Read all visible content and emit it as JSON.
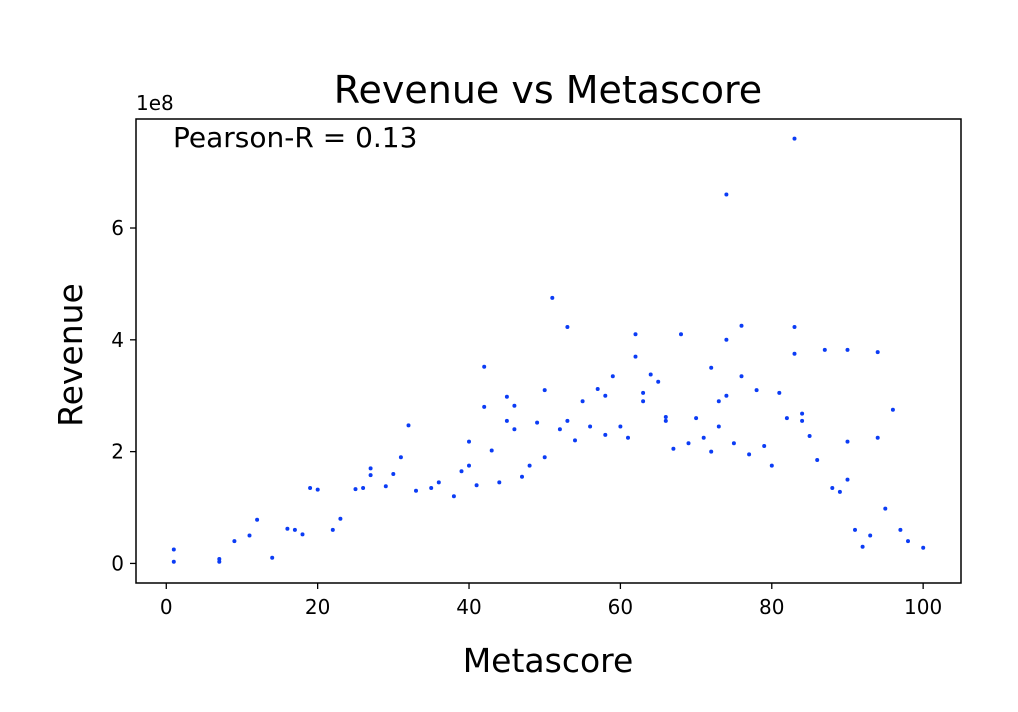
{
  "chart_data": {
    "type": "scatter",
    "title": "Revenue vs Metascore",
    "xlabel": "Metascore",
    "ylabel": "Revenue",
    "y_offset_label": "1e8",
    "annotation": "Pearson-R = 0.13",
    "xlim": [
      -4,
      105
    ],
    "ylim": [
      -35000000,
      795000000
    ],
    "x_ticks": [
      0,
      20,
      40,
      60,
      80,
      100
    ],
    "x_tick_labels": [
      "0",
      "20",
      "40",
      "60",
      "80",
      "100"
    ],
    "y_ticks": [
      0,
      200000000,
      400000000,
      600000000
    ],
    "y_tick_labels": [
      "0",
      "2",
      "4",
      "6"
    ],
    "grid": false,
    "marker_color": "#0b3cf5",
    "series": [
      {
        "points": [
          [
            1,
            3000000
          ],
          [
            1,
            25000000
          ],
          [
            7,
            3000000
          ],
          [
            7,
            8000000
          ],
          [
            9,
            40000000
          ],
          [
            11,
            50000000
          ],
          [
            12,
            78000000
          ],
          [
            14,
            10000000
          ],
          [
            16,
            62000000
          ],
          [
            17,
            60000000
          ],
          [
            18,
            52000000
          ],
          [
            19,
            135000000
          ],
          [
            20,
            132000000
          ],
          [
            22,
            60000000
          ],
          [
            23,
            80000000
          ],
          [
            25,
            133000000
          ],
          [
            26,
            135000000
          ],
          [
            27,
            170000000
          ],
          [
            27,
            158000000
          ],
          [
            29,
            138000000
          ],
          [
            30,
            160000000
          ],
          [
            31,
            190000000
          ],
          [
            32,
            247000000
          ],
          [
            33,
            130000000
          ],
          [
            35,
            135000000
          ],
          [
            36,
            145000000
          ],
          [
            38,
            120000000
          ],
          [
            39,
            165000000
          ],
          [
            40,
            175000000
          ],
          [
            40,
            218000000
          ],
          [
            41,
            140000000
          ],
          [
            42,
            280000000
          ],
          [
            42,
            352000000
          ],
          [
            43,
            202000000
          ],
          [
            44,
            145000000
          ],
          [
            45,
            298000000
          ],
          [
            45,
            255000000
          ],
          [
            46,
            282000000
          ],
          [
            46,
            240000000
          ],
          [
            47,
            155000000
          ],
          [
            48,
            175000000
          ],
          [
            49,
            252000000
          ],
          [
            50,
            190000000
          ],
          [
            50,
            310000000
          ],
          [
            51,
            475000000
          ],
          [
            52,
            240000000
          ],
          [
            53,
            423000000
          ],
          [
            53,
            255000000
          ],
          [
            54,
            220000000
          ],
          [
            55,
            290000000
          ],
          [
            56,
            245000000
          ],
          [
            57,
            312000000
          ],
          [
            58,
            300000000
          ],
          [
            58,
            230000000
          ],
          [
            59,
            335000000
          ],
          [
            60,
            245000000
          ],
          [
            61,
            225000000
          ],
          [
            62,
            410000000
          ],
          [
            62,
            370000000
          ],
          [
            63,
            305000000
          ],
          [
            63,
            290000000
          ],
          [
            64,
            338000000
          ],
          [
            65,
            325000000
          ],
          [
            66,
            262000000
          ],
          [
            66,
            255000000
          ],
          [
            67,
            205000000
          ],
          [
            68,
            410000000
          ],
          [
            69,
            215000000
          ],
          [
            70,
            260000000
          ],
          [
            71,
            225000000
          ],
          [
            72,
            350000000
          ],
          [
            72,
            200000000
          ],
          [
            73,
            245000000
          ],
          [
            73,
            290000000
          ],
          [
            74,
            660000000
          ],
          [
            74,
            300000000
          ],
          [
            74,
            400000000
          ],
          [
            75,
            215000000
          ],
          [
            76,
            425000000
          ],
          [
            76,
            335000000
          ],
          [
            77,
            195000000
          ],
          [
            78,
            310000000
          ],
          [
            79,
            210000000
          ],
          [
            80,
            175000000
          ],
          [
            81,
            305000000
          ],
          [
            82,
            260000000
          ],
          [
            83,
            760000000
          ],
          [
            83,
            423000000
          ],
          [
            83,
            375000000
          ],
          [
            84,
            268000000
          ],
          [
            84,
            255000000
          ],
          [
            85,
            228000000
          ],
          [
            86,
            185000000
          ],
          [
            87,
            382000000
          ],
          [
            88,
            135000000
          ],
          [
            89,
            128000000
          ],
          [
            90,
            382000000
          ],
          [
            90,
            218000000
          ],
          [
            90,
            150000000
          ],
          [
            91,
            60000000
          ],
          [
            92,
            30000000
          ],
          [
            93,
            50000000
          ],
          [
            94,
            378000000
          ],
          [
            94,
            225000000
          ],
          [
            95,
            98000000
          ],
          [
            96,
            275000000
          ],
          [
            97,
            60000000
          ],
          [
            98,
            40000000
          ],
          [
            100,
            28000000
          ]
        ]
      }
    ]
  }
}
